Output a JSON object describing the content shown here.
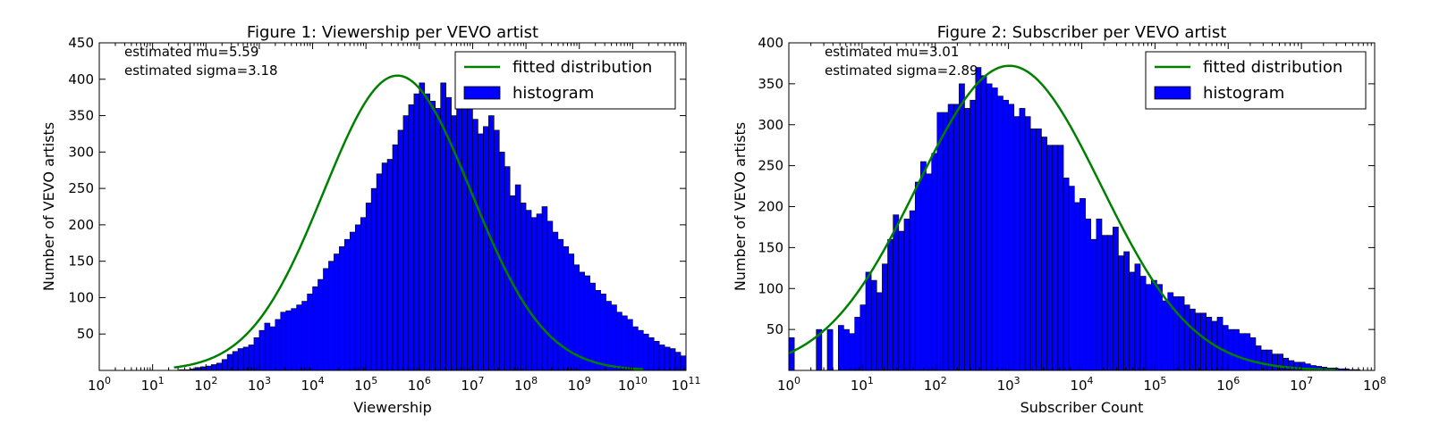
{
  "chart_data": [
    {
      "type": "bar",
      "title": "Figure 1: Viewership per VEVO artist",
      "xlabel": "Viewership",
      "ylabel": "Number of VEVO artists",
      "xscale": "log10",
      "xlim_exponent": [
        0,
        11
      ],
      "ylim": [
        0,
        450
      ],
      "xticks": [
        {
          "base": "10",
          "exp": "0"
        },
        {
          "base": "10",
          "exp": "1"
        },
        {
          "base": "10",
          "exp": "2"
        },
        {
          "base": "10",
          "exp": "3"
        },
        {
          "base": "10",
          "exp": "4"
        },
        {
          "base": "10",
          "exp": "5"
        },
        {
          "base": "10",
          "exp": "6"
        },
        {
          "base": "10",
          "exp": "7"
        },
        {
          "base": "10",
          "exp": "8"
        },
        {
          "base": "10",
          "exp": "9"
        },
        {
          "base": "10",
          "exp": "10"
        },
        {
          "base": "10",
          "exp": "11"
        }
      ],
      "yticks": [
        "50",
        "100",
        "150",
        "200",
        "250",
        "300",
        "350",
        "400",
        "450"
      ],
      "annotations": [
        "estimated mu=5.59",
        "estimated sigma=3.18"
      ],
      "legend": {
        "placement": "top-right",
        "entries": [
          {
            "label": "fitted distribution",
            "kind": "line",
            "color": "#008000"
          },
          {
            "label": "histogram",
            "kind": "patch",
            "color": "#0000ff"
          }
        ]
      },
      "fit": {
        "mu_log10": 5.59,
        "sigma_ln": 3.18,
        "peak": 405,
        "x_range_log10": [
          1.4,
          10.2
        ]
      },
      "histogram": {
        "bin_start_log10": 1.4,
        "bin_width_log10": 0.1,
        "counts": [
          0,
          1,
          1,
          2,
          4,
          5,
          6,
          8,
          10,
          15,
          22,
          26,
          30,
          32,
          35,
          45,
          55,
          65,
          60,
          70,
          80,
          82,
          85,
          90,
          95,
          105,
          115,
          125,
          140,
          150,
          160,
          170,
          180,
          190,
          200,
          210,
          230,
          250,
          270,
          285,
          290,
          310,
          330,
          350,
          365,
          380,
          395,
          380,
          370,
          360,
          395,
          375,
          350,
          365,
          395,
          385,
          345,
          325,
          335,
          350,
          330,
          300,
          280,
          240,
          255,
          230,
          220,
          210,
          215,
          225,
          205,
          190,
          180,
          170,
          160,
          145,
          135,
          130,
          120,
          110,
          105,
          95,
          90,
          80,
          75,
          70,
          60,
          55,
          50,
          45,
          40,
          35,
          32,
          30,
          25,
          20,
          17,
          15,
          12,
          10,
          8,
          7,
          5,
          4,
          3,
          2,
          2,
          1
        ]
      }
    },
    {
      "type": "bar",
      "title": "Figure 2: Subscriber per VEVO artist",
      "xlabel": "Subscriber Count",
      "ylabel": "Number of VEVO artists",
      "xscale": "log10",
      "xlim_exponent": [
        0,
        8
      ],
      "ylim": [
        0,
        400
      ],
      "xticks": [
        {
          "base": "10",
          "exp": "0"
        },
        {
          "base": "10",
          "exp": "1"
        },
        {
          "base": "10",
          "exp": "2"
        },
        {
          "base": "10",
          "exp": "3"
        },
        {
          "base": "10",
          "exp": "4"
        },
        {
          "base": "10",
          "exp": "5"
        },
        {
          "base": "10",
          "exp": "6"
        },
        {
          "base": "10",
          "exp": "7"
        },
        {
          "base": "10",
          "exp": "8"
        }
      ],
      "yticks": [
        "50",
        "100",
        "150",
        "200",
        "250",
        "300",
        "350",
        "400"
      ],
      "annotations": [
        "estimated mu=3.01",
        "estimated sigma=2.89"
      ],
      "legend": {
        "placement": "top-right",
        "entries": [
          {
            "label": "fitted distribution",
            "kind": "line",
            "color": "#008000"
          },
          {
            "label": "histogram",
            "kind": "patch",
            "color": "#0000ff"
          }
        ]
      },
      "fit": {
        "mu_log10": 3.01,
        "sigma_ln": 2.89,
        "peak": 372,
        "x_range_log10": [
          0.0,
          7.5
        ]
      },
      "histogram": {
        "bin_start_log10": 0.0,
        "bin_width_log10": 0.075,
        "counts": [
          40,
          0,
          0,
          0,
          0,
          50,
          0,
          50,
          0,
          55,
          50,
          45,
          65,
          80,
          120,
          110,
          95,
          130,
          160,
          190,
          170,
          185,
          195,
          230,
          255,
          240,
          265,
          315,
          315,
          325,
          325,
          350,
          320,
          330,
          370,
          360,
          350,
          345,
          335,
          330,
          325,
          310,
          320,
          310,
          295,
          295,
          285,
          275,
          275,
          275,
          235,
          225,
          205,
          210,
          185,
          160,
          185,
          165,
          165,
          175,
          140,
          145,
          120,
          130,
          115,
          105,
          110,
          105,
          85,
          95,
          90,
          90,
          80,
          75,
          70,
          70,
          65,
          60,
          65,
          55,
          50,
          50,
          45,
          45,
          40,
          30,
          25,
          25,
          20,
          20,
          15,
          12,
          10,
          10,
          8,
          6,
          5,
          4,
          3,
          3,
          2,
          2,
          1,
          1
        ]
      }
    }
  ]
}
